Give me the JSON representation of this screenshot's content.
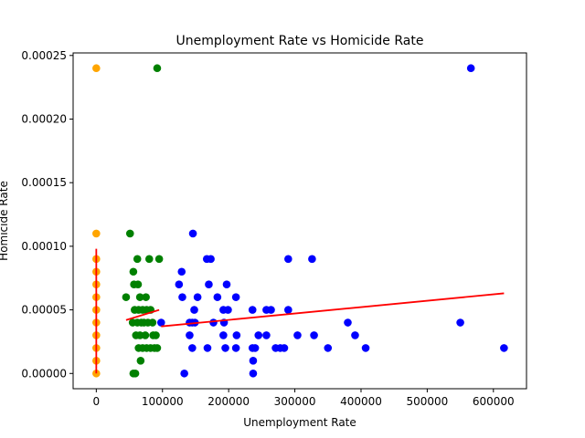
{
  "chart_data": {
    "type": "scatter",
    "title": "Unemployment Rate vs Homicide Rate",
    "xlabel": "Unemployment Rate",
    "ylabel": "Homicide Rate",
    "xlim": [
      -35000,
      650000
    ],
    "ylim": [
      -1.2e-05,
      0.000252
    ],
    "x_ticks": [
      0,
      100000,
      200000,
      300000,
      400000,
      500000,
      600000
    ],
    "x_tick_labels": [
      "0",
      "100000",
      "200000",
      "300000",
      "400000",
      "500000",
      "600000"
    ],
    "y_ticks": [
      0,
      5e-05,
      0.0001,
      0.00015,
      0.0002,
      0.00025
    ],
    "y_tick_labels": [
      "0.00000",
      "0.00005",
      "0.00010",
      "0.00015",
      "0.00020",
      "0.00025"
    ],
    "grid": false,
    "series": [
      {
        "color": "#ffa500",
        "points": [
          [
            0,
            0.00024
          ],
          [
            0,
            0.00011
          ],
          [
            0,
            9e-05
          ],
          [
            0,
            8e-05
          ],
          [
            0,
            7e-05
          ],
          [
            0,
            6e-05
          ],
          [
            0,
            5e-05
          ],
          [
            0,
            4e-05
          ],
          [
            0,
            3e-05
          ],
          [
            0,
            2e-05
          ],
          [
            0,
            1e-05
          ],
          [
            0,
            0.0
          ]
        ]
      },
      {
        "color": "#008000",
        "points": [
          [
            92000,
            0.00024
          ],
          [
            51000,
            0.00011
          ],
          [
            62000,
            9e-05
          ],
          [
            80000,
            9e-05
          ],
          [
            95000,
            9e-05
          ],
          [
            56000,
            8e-05
          ],
          [
            57000,
            7e-05
          ],
          [
            63000,
            7e-05
          ],
          [
            45000,
            6e-05
          ],
          [
            66000,
            6e-05
          ],
          [
            75000,
            6e-05
          ],
          [
            58000,
            5e-05
          ],
          [
            64000,
            5e-05
          ],
          [
            70000,
            5e-05
          ],
          [
            76000,
            5e-05
          ],
          [
            82000,
            5e-05
          ],
          [
            55000,
            4e-05
          ],
          [
            62000,
            4e-05
          ],
          [
            68000,
            4e-05
          ],
          [
            72000,
            4e-05
          ],
          [
            78000,
            4e-05
          ],
          [
            85000,
            4e-05
          ],
          [
            60000,
            3e-05
          ],
          [
            66000,
            3e-05
          ],
          [
            74000,
            3e-05
          ],
          [
            86000,
            3e-05
          ],
          [
            90000,
            3e-05
          ],
          [
            64000,
            2e-05
          ],
          [
            70000,
            2e-05
          ],
          [
            76000,
            2e-05
          ],
          [
            82000,
            2e-05
          ],
          [
            88000,
            2e-05
          ],
          [
            92000,
            2e-05
          ],
          [
            67000,
            1e-05
          ],
          [
            56000,
            0.0
          ],
          [
            59000,
            0.0
          ]
        ]
      },
      {
        "color": "#0000ff",
        "points": [
          [
            566000,
            0.00024
          ],
          [
            146000,
            0.00011
          ],
          [
            167000,
            9e-05
          ],
          [
            173000,
            9e-05
          ],
          [
            290000,
            9e-05
          ],
          [
            326000,
            9e-05
          ],
          [
            129000,
            8e-05
          ],
          [
            125000,
            7e-05
          ],
          [
            170000,
            7e-05
          ],
          [
            197000,
            7e-05
          ],
          [
            130000,
            6e-05
          ],
          [
            153000,
            6e-05
          ],
          [
            183000,
            6e-05
          ],
          [
            211000,
            6e-05
          ],
          [
            148000,
            5e-05
          ],
          [
            192000,
            5e-05
          ],
          [
            199000,
            5e-05
          ],
          [
            236000,
            5e-05
          ],
          [
            257000,
            5e-05
          ],
          [
            264000,
            5e-05
          ],
          [
            290000,
            5e-05
          ],
          [
            98000,
            4e-05
          ],
          [
            141000,
            4e-05
          ],
          [
            145000,
            4e-05
          ],
          [
            149000,
            4e-05
          ],
          [
            177000,
            4e-05
          ],
          [
            193000,
            4e-05
          ],
          [
            380000,
            4e-05
          ],
          [
            550000,
            4e-05
          ],
          [
            141000,
            3e-05
          ],
          [
            192000,
            3e-05
          ],
          [
            212000,
            3e-05
          ],
          [
            245000,
            3e-05
          ],
          [
            257000,
            3e-05
          ],
          [
            304000,
            3e-05
          ],
          [
            329000,
            3e-05
          ],
          [
            391000,
            3e-05
          ],
          [
            145000,
            2e-05
          ],
          [
            168000,
            2e-05
          ],
          [
            195000,
            2e-05
          ],
          [
            211000,
            2e-05
          ],
          [
            236000,
            2e-05
          ],
          [
            240000,
            2e-05
          ],
          [
            271000,
            2e-05
          ],
          [
            278000,
            2e-05
          ],
          [
            284000,
            2e-05
          ],
          [
            350000,
            2e-05
          ],
          [
            407000,
            2e-05
          ],
          [
            616000,
            2e-05
          ],
          [
            237000,
            1e-05
          ],
          [
            133000,
            0.0
          ],
          [
            237000,
            0.0
          ]
        ]
      }
    ],
    "trendlines": [
      {
        "color": "#ff0000",
        "x": [
          0,
          0
        ],
        "y": [
          0.0,
          9.8e-05
        ]
      },
      {
        "color": "#ff0000",
        "x": [
          45000,
          95000
        ],
        "y": [
          4.2e-05,
          5e-05
        ]
      },
      {
        "color": "#ff0000",
        "x": [
          98000,
          616000
        ],
        "y": [
          3.7e-05,
          6.3e-05
        ]
      }
    ]
  }
}
